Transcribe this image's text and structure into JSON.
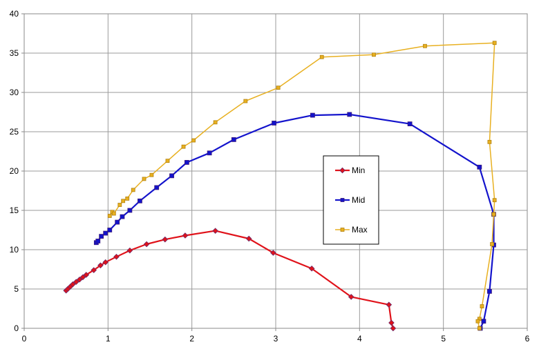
{
  "chart_data": {
    "type": "scatter",
    "title": "",
    "xlabel": "",
    "ylabel": "",
    "xlim": [
      0,
      6
    ],
    "ylim": [
      0,
      40
    ],
    "x_ticks": [
      0,
      1,
      2,
      3,
      4,
      5,
      6
    ],
    "y_ticks": [
      0,
      5,
      10,
      15,
      20,
      25,
      30,
      35,
      40
    ],
    "grid": true,
    "legend_position": "center-right",
    "series": [
      {
        "name": "Min",
        "color": "#e0121a",
        "marker": "diamond",
        "points": [
          [
            0.5,
            4.8
          ],
          [
            0.52,
            5.0
          ],
          [
            0.55,
            5.3
          ],
          [
            0.58,
            5.6
          ],
          [
            0.62,
            5.9
          ],
          [
            0.66,
            6.2
          ],
          [
            0.7,
            6.5
          ],
          [
            0.74,
            6.8
          ],
          [
            0.83,
            7.4
          ],
          [
            0.91,
            8.0
          ],
          [
            0.97,
            8.4
          ],
          [
            1.1,
            9.1
          ],
          [
            1.26,
            9.9
          ],
          [
            1.46,
            10.7
          ],
          [
            1.68,
            11.3
          ],
          [
            1.92,
            11.8
          ],
          [
            2.28,
            12.4
          ],
          [
            2.68,
            11.4
          ],
          [
            2.97,
            9.6
          ],
          [
            3.43,
            7.6
          ],
          [
            3.9,
            4.0
          ],
          [
            4.35,
            3.0
          ],
          [
            4.38,
            0.7
          ],
          [
            4.4,
            0.0
          ]
        ]
      },
      {
        "name": "Mid",
        "color": "#1313cc",
        "marker": "square",
        "points": [
          [
            0.86,
            10.9
          ],
          [
            0.88,
            11.1
          ],
          [
            0.92,
            11.7
          ],
          [
            0.97,
            12.1
          ],
          [
            1.02,
            12.5
          ],
          [
            1.11,
            13.5
          ],
          [
            1.17,
            14.2
          ],
          [
            1.26,
            15.0
          ],
          [
            1.38,
            16.2
          ],
          [
            1.58,
            17.9
          ],
          [
            1.76,
            19.4
          ],
          [
            1.94,
            21.1
          ],
          [
            2.21,
            22.3
          ],
          [
            2.5,
            24.0
          ],
          [
            2.98,
            26.1
          ],
          [
            3.44,
            27.1
          ],
          [
            3.88,
            27.2
          ],
          [
            4.6,
            26.0
          ],
          [
            5.43,
            20.5
          ],
          [
            5.6,
            14.5
          ],
          [
            5.6,
            10.6
          ],
          [
            5.55,
            4.7
          ],
          [
            5.48,
            0.9
          ],
          [
            5.44,
            0.0
          ]
        ]
      },
      {
        "name": "Max",
        "color": "#e8b020",
        "marker": "square",
        "points": [
          [
            1.02,
            14.3
          ],
          [
            1.05,
            14.8
          ],
          [
            1.07,
            14.6
          ],
          [
            1.14,
            15.7
          ],
          [
            1.18,
            16.2
          ],
          [
            1.23,
            16.5
          ],
          [
            1.3,
            17.6
          ],
          [
            1.43,
            19.0
          ],
          [
            1.52,
            19.5
          ],
          [
            1.71,
            21.3
          ],
          [
            1.9,
            23.1
          ],
          [
            2.02,
            23.9
          ],
          [
            2.28,
            26.2
          ],
          [
            2.64,
            28.9
          ],
          [
            3.03,
            30.6
          ],
          [
            3.55,
            34.5
          ],
          [
            4.17,
            34.8
          ],
          [
            4.78,
            35.9
          ],
          [
            5.61,
            36.3
          ],
          [
            5.55,
            23.7
          ],
          [
            5.61,
            16.3
          ],
          [
            5.6,
            14.5
          ],
          [
            5.58,
            10.7
          ],
          [
            5.46,
            2.8
          ],
          [
            5.43,
            1.2
          ],
          [
            5.41,
            0.9
          ],
          [
            5.43,
            0.0
          ]
        ]
      }
    ]
  }
}
